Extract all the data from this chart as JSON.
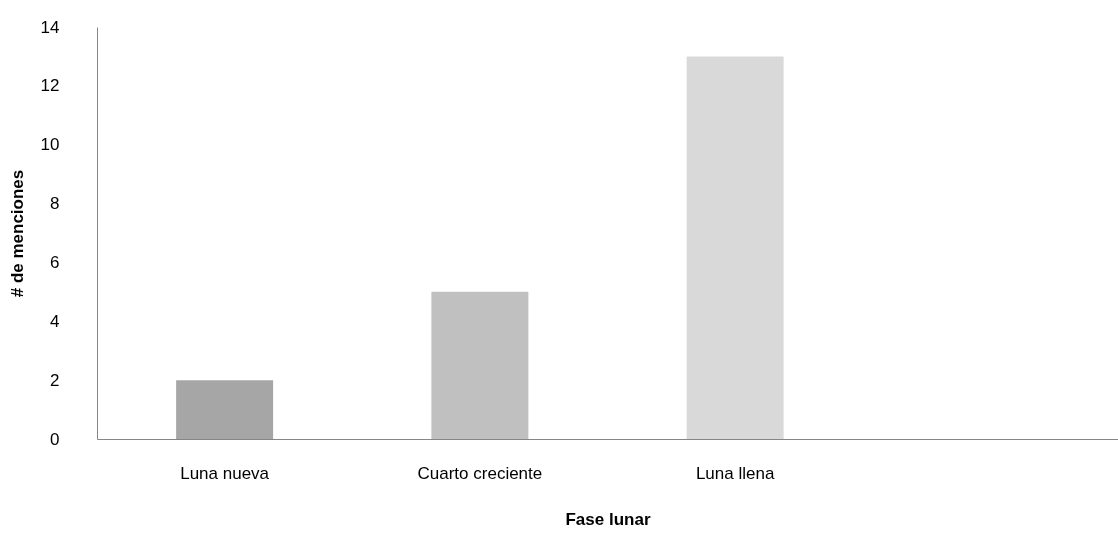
{
  "chart_data": {
    "type": "bar",
    "xlabel": "Fase lunar",
    "ylabel": "# de menciones",
    "categories": [
      "Luna nueva",
      "Cuarto creciente",
      "Luna llena",
      null
    ],
    "values": [
      2,
      5,
      13,
      null
    ],
    "colors": [
      "#a6a6a6",
      "#c0c0c0",
      "#d9d9d9",
      "#d9d9d9"
    ],
    "ylim": [
      0,
      14
    ],
    "yticks": [
      0,
      2,
      4,
      6,
      8,
      10,
      12,
      14
    ],
    "grid": false
  }
}
